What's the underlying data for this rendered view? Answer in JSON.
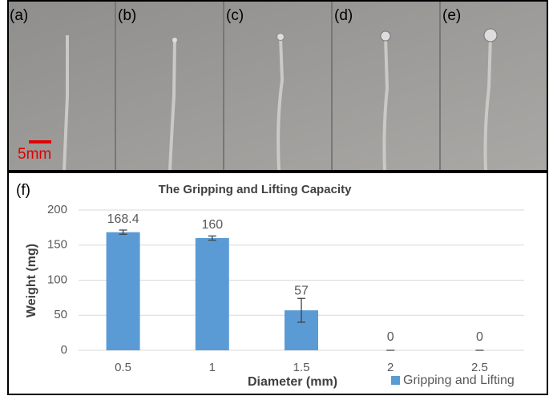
{
  "photos": {
    "panels": [
      "(a)",
      "(b)",
      "(c)",
      "(d)",
      "(e)"
    ],
    "scale_bar": "5mm"
  },
  "chart_data": {
    "type": "bar",
    "panel_label": "(f)",
    "title": "The Gripping and Lifting Capacity",
    "x_label": "Diameter (mm)",
    "y_label": "Weight (mg)",
    "categories": [
      "0.5",
      "1",
      "1.5",
      "2",
      "2.5"
    ],
    "series": [
      {
        "name": "Gripping and Lifting",
        "color": "#5b9bd5",
        "values": [
          168.4,
          160,
          57,
          0,
          0
        ],
        "errors": [
          3,
          3,
          17,
          0,
          0
        ]
      }
    ],
    "ylim": [
      0,
      200
    ],
    "yticks": [
      0,
      50,
      100,
      150,
      200
    ],
    "grid": true,
    "legend": "bottom-right"
  }
}
